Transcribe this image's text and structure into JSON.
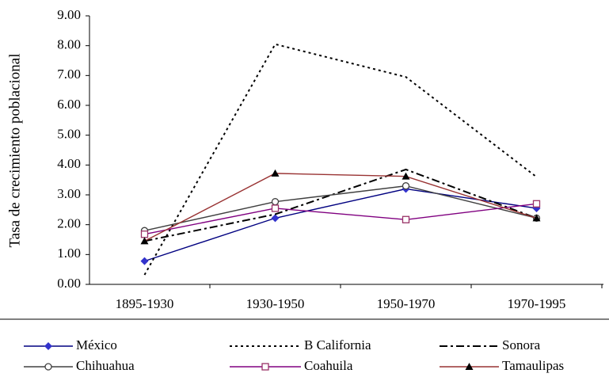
{
  "chart_data": {
    "type": "line",
    "y_label": "Tasa de crecimiento poblacional",
    "categories": [
      "1895-1930",
      "1930-1950",
      "1950-1970",
      "1970-1995"
    ],
    "ylim": [
      0,
      9
    ],
    "yticks": [
      {
        "value": 0,
        "label": "0.00"
      },
      {
        "value": 1,
        "label": "1.00"
      },
      {
        "value": 2,
        "label": "2.00"
      },
      {
        "value": 3,
        "label": "3.00"
      },
      {
        "value": 4,
        "label": "4.00"
      },
      {
        "value": 5,
        "label": "5.00"
      },
      {
        "value": 6,
        "label": "6.00"
      },
      {
        "value": 7,
        "label": "7.00"
      },
      {
        "value": 8,
        "label": "8.00"
      },
      {
        "value": 9,
        "label": "9.00"
      }
    ],
    "series": [
      {
        "name": "México",
        "color": "#000080",
        "marker_color": "#3333cc",
        "marker": "diamond",
        "dash": "solid",
        "values": [
          0.78,
          2.22,
          3.2,
          2.55
        ]
      },
      {
        "name": "B California",
        "color": "#000000",
        "marker": "none",
        "dash": "dot",
        "values": [
          0.32,
          8.05,
          6.95,
          3.6
        ]
      },
      {
        "name": "Sonora",
        "color": "#000000",
        "marker": "none",
        "dash": "dashdot",
        "values": [
          1.45,
          2.35,
          3.85,
          2.22
        ]
      },
      {
        "name": "Chihuahua",
        "color": "#404040",
        "marker_color": "#404040",
        "marker": "circle",
        "dash": "solid",
        "values": [
          1.8,
          2.77,
          3.3,
          2.22
        ]
      },
      {
        "name": "Coahuila",
        "color": "#800080",
        "marker_color": "#993366",
        "marker": "square",
        "dash": "solid",
        "values": [
          1.68,
          2.55,
          2.17,
          2.7
        ]
      },
      {
        "name": "Tamaulipas",
        "color": "#993333",
        "marker_color": "#000000",
        "marker": "triangle",
        "dash": "solid",
        "values": [
          1.45,
          3.72,
          3.62,
          2.22
        ]
      }
    ]
  }
}
